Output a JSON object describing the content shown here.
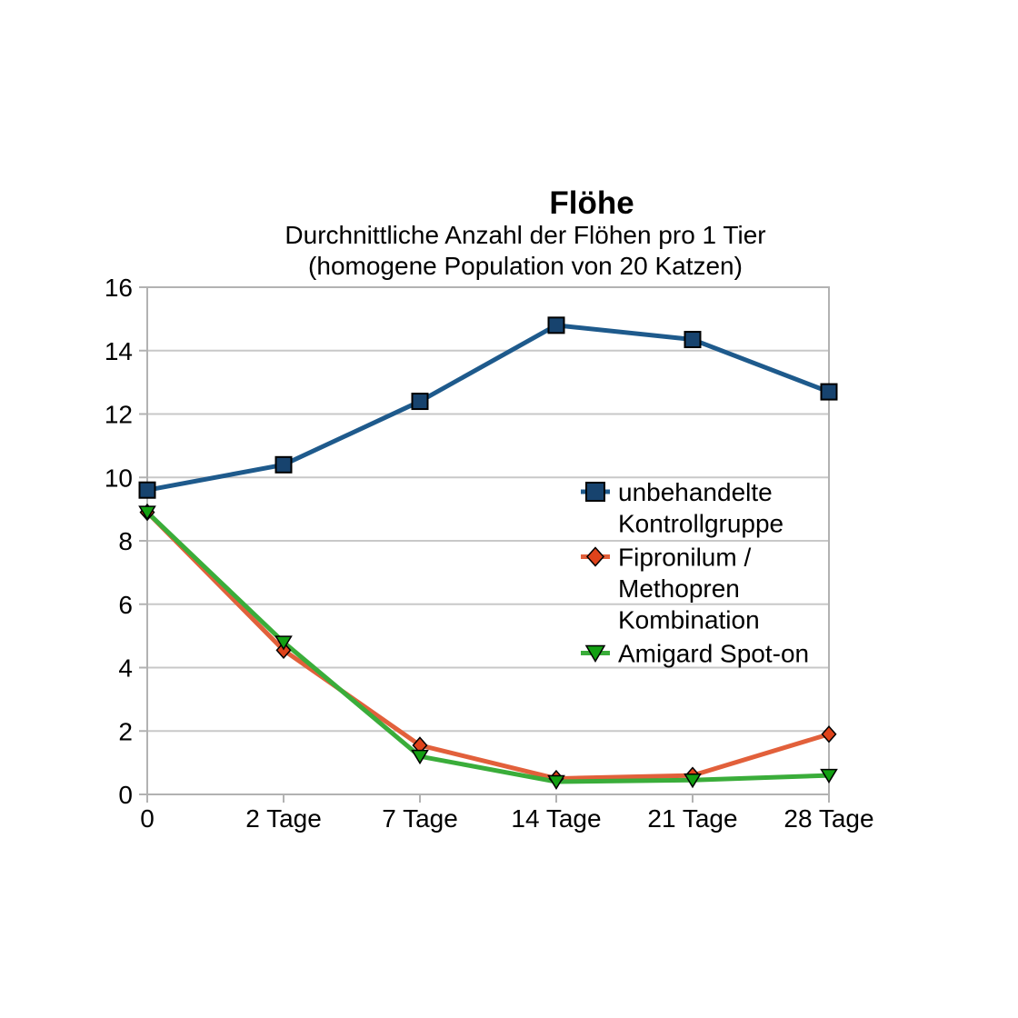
{
  "chart_data": {
    "type": "line",
    "title": "Flöhe",
    "subtitle_lines": [
      "Durchnittliche Anzahl der Flöhen pro 1 Tier",
      "(homogene Population von 20 Katzen)"
    ],
    "categories": [
      "0",
      "2 Tage",
      "7 Tage",
      "14 Tage",
      "21 Tage",
      "28 Tage"
    ],
    "xlabel": "",
    "ylabel": "",
    "ylim": [
      0,
      16
    ],
    "ytick_step": 2,
    "grid": true,
    "legend_position": "inside-right",
    "series": [
      {
        "name": "unbehandelte Kontrollgruppe",
        "legend_lines": [
          "unbehandelte",
          "Kontrollgruppe"
        ],
        "marker": "square",
        "line_color": "#1E5A8C",
        "marker_color": "#17436E",
        "values": [
          9.6,
          10.4,
          12.4,
          14.8,
          14.35,
          12.7
        ]
      },
      {
        "name": "Fipronilum / Methopren Kombination",
        "legend_lines": [
          "Fipronilum /",
          "Methopren",
          "Kombination"
        ],
        "marker": "diamond",
        "line_color": "#E2603B",
        "marker_color": "#DF431B",
        "values": [
          8.9,
          4.55,
          1.55,
          0.5,
          0.6,
          1.9
        ]
      },
      {
        "name": "Amigard Spot-on",
        "legend_lines": [
          "Amigard Spot-on"
        ],
        "marker": "triangle-down",
        "line_color": "#3AAD3A",
        "marker_color": "#13A013",
        "values": [
          8.9,
          4.8,
          1.2,
          0.4,
          0.45,
          0.6
        ]
      }
    ],
    "style": {
      "grid_color": "#C8C8C8",
      "axis_color": "#B2B2B2",
      "text_color": "#000000",
      "background": "#FFFFFF",
      "line_width": 5,
      "tick_font_size": 28,
      "legend_font_size": 28
    }
  }
}
